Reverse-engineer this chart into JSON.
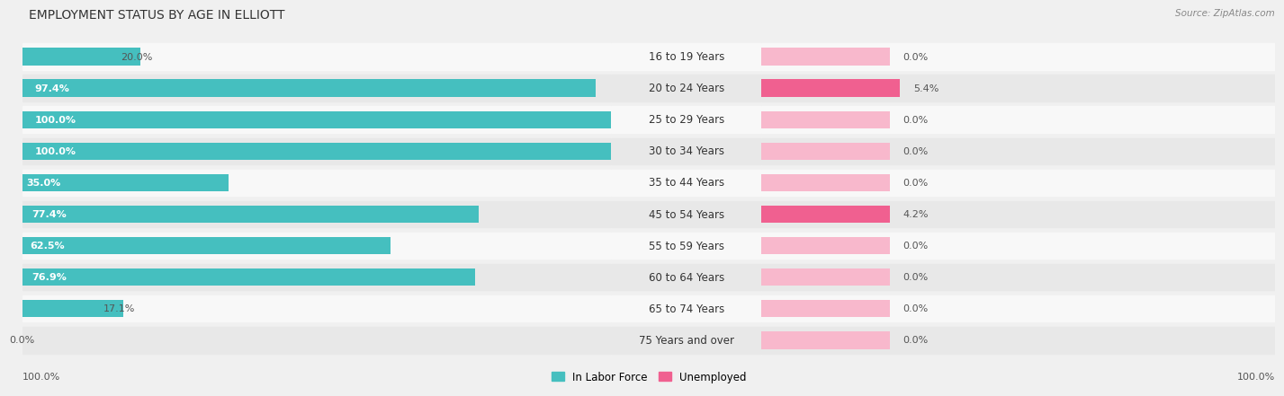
{
  "title": "EMPLOYMENT STATUS BY AGE IN ELLIOTT",
  "source": "Source: ZipAtlas.com",
  "categories": [
    "16 to 19 Years",
    "20 to 24 Years",
    "25 to 29 Years",
    "30 to 34 Years",
    "35 to 44 Years",
    "45 to 54 Years",
    "55 to 59 Years",
    "60 to 64 Years",
    "65 to 74 Years",
    "75 Years and over"
  ],
  "in_labor_force": [
    20.0,
    97.4,
    100.0,
    100.0,
    35.0,
    77.4,
    62.5,
    76.9,
    17.1,
    0.0
  ],
  "unemployed": [
    0.0,
    5.4,
    0.0,
    0.0,
    0.0,
    4.2,
    0.0,
    0.0,
    0.0,
    0.0
  ],
  "labor_color": "#45bfbf",
  "unemployed_color_high": "#f06090",
  "unemployed_color_low": "#f8b8cc",
  "bg_color": "#f0f0f0",
  "row_bg_odd": "#e8e8e8",
  "row_bg_even": "#f8f8f8",
  "title_fontsize": 10,
  "label_fontsize": 8.5,
  "value_fontsize": 8,
  "legend_fontsize": 8.5,
  "max_value": 100.0,
  "unemployed_stub": 5.0,
  "unemp_threshold": 2.0
}
